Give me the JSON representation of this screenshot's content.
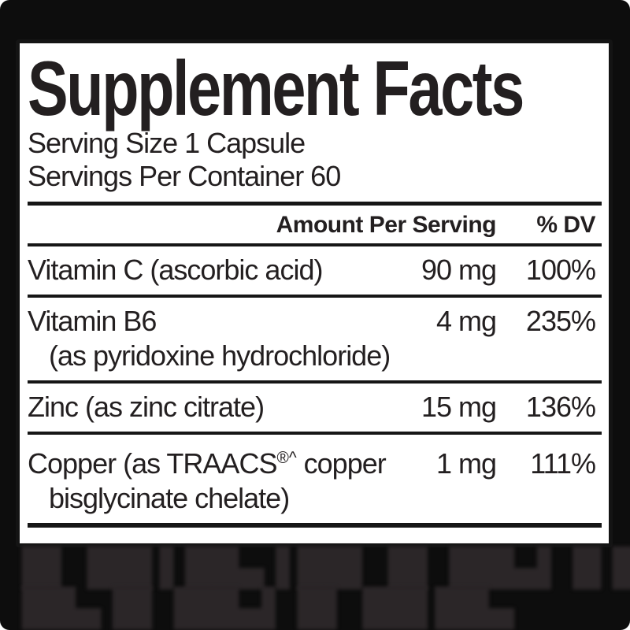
{
  "label": {
    "title": "Supplement Facts",
    "serving_size": "Serving Size 1 Capsule",
    "servings_per_container": "Servings Per Container 60",
    "columns": {
      "amount": "Amount Per Serving",
      "dv": "% DV"
    },
    "rows": [
      {
        "name": "Vitamin C (ascorbic acid)",
        "name_sup": "",
        "name_tail": "",
        "sub": "",
        "amount": "90 mg",
        "dv": "100%"
      },
      {
        "name": "Vitamin B6",
        "name_sup": "",
        "name_tail": "",
        "sub": "(as pyridoxine hydrochloride)",
        "amount": "4 mg",
        "dv": "235%"
      },
      {
        "name": "Zinc (as zinc citrate)",
        "name_sup": "",
        "name_tail": "",
        "sub": "",
        "amount": "15 mg",
        "dv": "136%"
      },
      {
        "name": "Copper (as TRAACS",
        "name_sup": "®^",
        "name_tail": " copper",
        "sub": "bisglycinate chelate)",
        "amount": "1 mg",
        "dv": "111%"
      }
    ]
  },
  "footer": {
    "illegible_line_1": "█▌▐██ ▌██▄▐ ██▌▐█ ▐██▄▌ █▐██▌",
    "illegible_line_2": "██▄▐█ ▐██▄▌ █▌▐██ ██▄"
  },
  "colors": {
    "page_background": "#0d0d0d",
    "panel_background": "#ffffff",
    "label_text": "#231f20",
    "divider_bar": "#161616",
    "blurred_text": "#2b2628"
  }
}
